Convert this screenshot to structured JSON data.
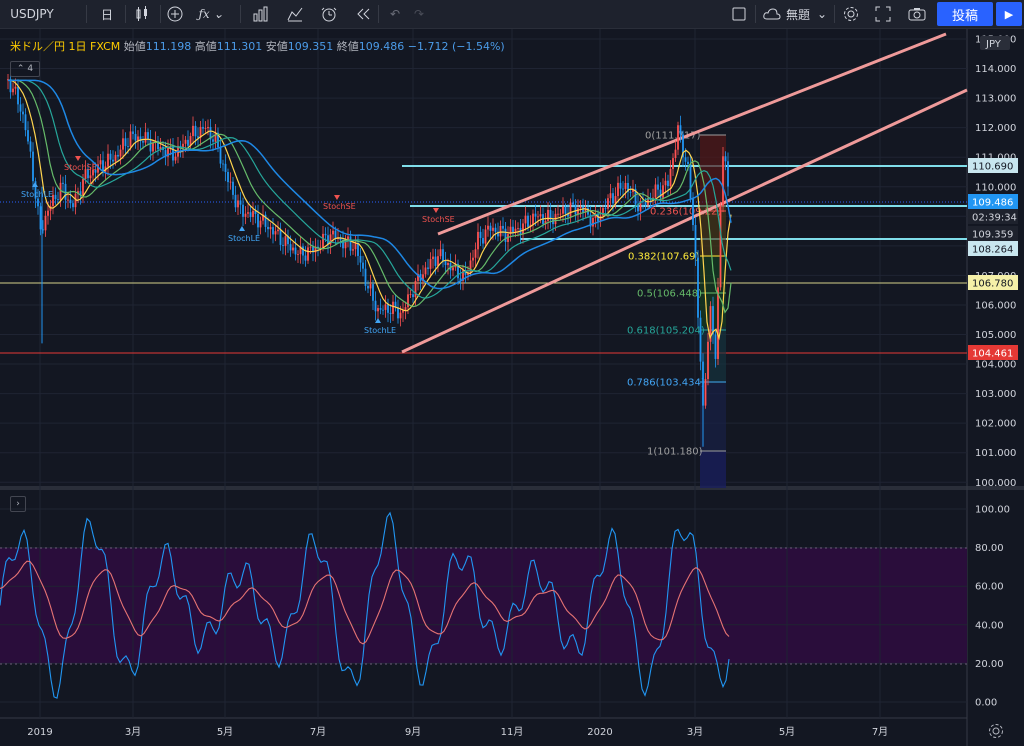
{
  "toolbar": {
    "symbol": "USDJPY",
    "interval": "日",
    "layout_name": "無題",
    "post_label": "投稿"
  },
  "legend": {
    "symbol": "米ドル／円",
    "interval": "1日",
    "exchange": "FXCM",
    "open_label": "始値",
    "open": "111.198",
    "high_label": "高値",
    "high": "111.301",
    "low_label": "安値",
    "low": "109.351",
    "close_label": "終値",
    "close": "109.486",
    "change": "−1.712 (−1.54%)",
    "indicators_count": "4"
  },
  "price_axis": {
    "currency": "JPY",
    "ticks": [
      "115.000",
      "114.000",
      "113.000",
      "112.000",
      "111.000",
      "110.000",
      "109.000",
      "108.000",
      "107.000",
      "106.000",
      "105.000",
      "104.000",
      "103.000",
      "102.000",
      "101.000",
      "100.000"
    ],
    "tags": [
      {
        "text": "110.690",
        "bg": "#c8e6ef",
        "fg": "#131722"
      },
      {
        "text": "109.486",
        "bg": "#2196f3",
        "fg": "#ffffff"
      },
      {
        "text": "02:39:34",
        "bg": "#1e222d",
        "fg": "#d1d4dc"
      },
      {
        "text": "109.359",
        "bg": "#1e222d",
        "fg": "#d1d4dc"
      },
      {
        "text": "108.264",
        "bg": "#c8e6ef",
        "fg": "#131722"
      },
      {
        "text": "106.780",
        "bg": "#f5f0a8",
        "fg": "#131722"
      },
      {
        "text": "104.461",
        "bg": "#e53935",
        "fg": "#ffffff"
      }
    ]
  },
  "fib_labels": [
    "0(111.717)",
    "0.236(109.22)",
    "0.382(107.69)",
    "0.5(106.448)",
    "0.618(105.204)",
    "0.786(103.434)",
    "1(101.180)"
  ],
  "strategy_labels": [
    "StochSE",
    "StochLE",
    "StochLE",
    "StochSE",
    "StochSE",
    "StochLE"
  ],
  "osc_axis": {
    "ticks": [
      "100.00",
      "80.00",
      "60.00",
      "40.00",
      "20.00",
      "0.00"
    ]
  },
  "time_axis": {
    "ticks": [
      "2019",
      "3月",
      "5月",
      "7月",
      "9月",
      "11月",
      "2020",
      "3月",
      "5月",
      "7月"
    ]
  },
  "colors": {
    "background": "#131722",
    "up": "#ff5252",
    "down": "#2196f3",
    "channel": "#ef9a9a",
    "level": "#80deea",
    "osc_band": "#2a0d3b"
  }
}
